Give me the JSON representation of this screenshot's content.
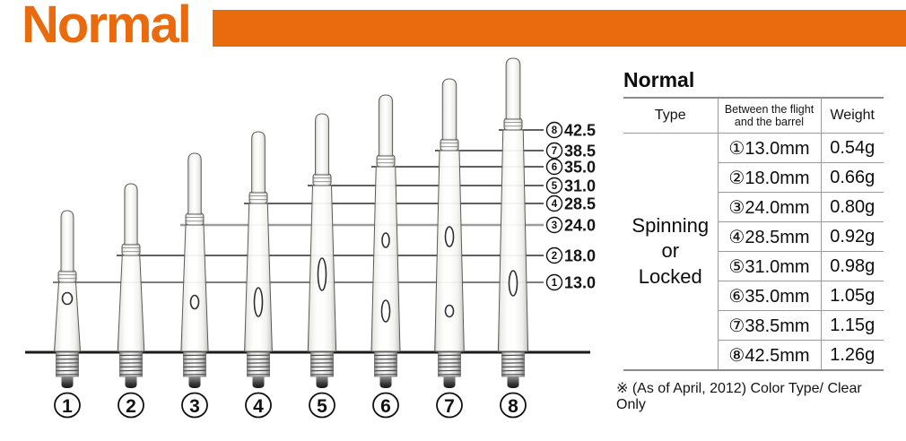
{
  "header": {
    "title": "Normal"
  },
  "colors": {
    "accent": "#E96B0D",
    "line_dark": "#2d2d2d",
    "line_gray": "#9c9c9c"
  },
  "diagram": {
    "shafts": [
      {
        "number": "1",
        "length_mm": 13.0,
        "size_label": "13.0"
      },
      {
        "number": "2",
        "length_mm": 18.0,
        "size_label": "18.0"
      },
      {
        "number": "3",
        "length_mm": 24.0,
        "size_label": "24.0"
      },
      {
        "number": "4",
        "length_mm": 28.5,
        "size_label": "28.5"
      },
      {
        "number": "5",
        "length_mm": 31.0,
        "size_label": "31.0"
      },
      {
        "number": "6",
        "length_mm": 35.0,
        "size_label": "35.0"
      },
      {
        "number": "7",
        "length_mm": 38.5,
        "size_label": "38.5"
      },
      {
        "number": "8",
        "length_mm": 42.5,
        "size_label": "42.5"
      }
    ]
  },
  "table": {
    "heading": "Normal",
    "columns": [
      "Type",
      "Between the flight and the barrel",
      "Weight"
    ],
    "type_value": "Spinning\nor\nLocked",
    "rows": [
      {
        "size": "①13.0mm",
        "weight": "0.54g"
      },
      {
        "size": "②18.0mm",
        "weight": "0.66g"
      },
      {
        "size": "③24.0mm",
        "weight": "0.80g"
      },
      {
        "size": "④28.5mm",
        "weight": "0.92g"
      },
      {
        "size": "⑤31.0mm",
        "weight": "0.98g"
      },
      {
        "size": "⑥35.0mm",
        "weight": "1.05g"
      },
      {
        "size": "⑦38.5mm",
        "weight": "1.15g"
      },
      {
        "size": "⑧42.5mm",
        "weight": "1.26g"
      }
    ],
    "note": "※ (As of April, 2012) Color Type/ Clear Only"
  }
}
